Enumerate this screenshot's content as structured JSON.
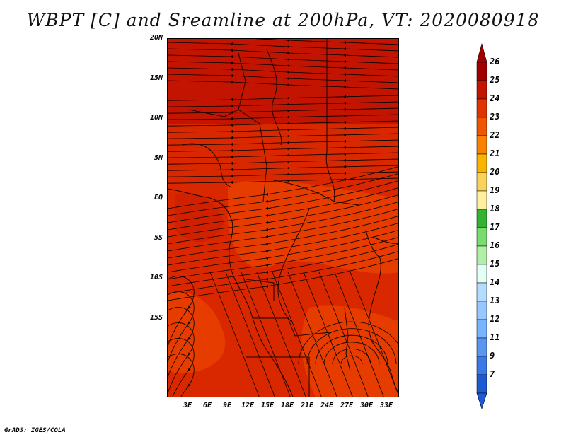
{
  "title": "WBPT [C] and Sreamline at 200hPa, VT: 2020080918",
  "credit": "GrADS: IGES/COLA",
  "map": {
    "lat_ticks": [
      "20N",
      "15N",
      "10N",
      "5N",
      "EQ",
      "5S",
      "10S",
      "15S"
    ],
    "lon_ticks": [
      "3E",
      "6E",
      "9E",
      "12E",
      "15E",
      "18E",
      "21E",
      "24E",
      "27E",
      "30E",
      "33E"
    ],
    "field_colors": {
      "dark": "#c21400",
      "mid": "#d92800",
      "light": "#e63c00"
    }
  },
  "colorbar": {
    "labels": [
      "26",
      "25",
      "24",
      "23",
      "22",
      "21",
      "20",
      "19",
      "18",
      "17",
      "16",
      "15",
      "14",
      "13",
      "12",
      "11",
      "9",
      "7"
    ],
    "colors": [
      "#a00000",
      "#c41400",
      "#e13200",
      "#f05500",
      "#fa8200",
      "#fab400",
      "#fad25a",
      "#fff0a0",
      "#32b432",
      "#78dc6e",
      "#aff0a5",
      "#e1fff5",
      "#b4dcff",
      "#96c8ff",
      "#78b4ff",
      "#5a96f0",
      "#3c78e6",
      "#1e5ad2"
    ],
    "top_arrow_color": "#a00000",
    "bottom_arrow_color": "#1e5ad2"
  }
}
